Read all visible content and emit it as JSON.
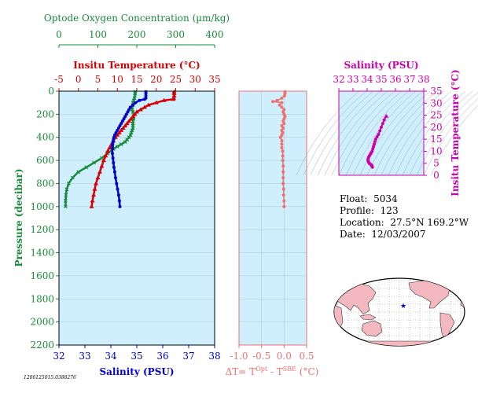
{
  "colors": {
    "oxygen": "#1a8a3a",
    "temperature": "#d80000",
    "salinity": "#0000cc",
    "delta": "#f07070",
    "ts": "#cc00aa",
    "plot_bg": "#cfefff",
    "land": "#f4b8c0"
  },
  "stamp": "1206125015.0388276",
  "info": {
    "float_label": "Float:",
    "float_value": "5034",
    "profile_label": "Profile:",
    "profile_value": "123",
    "location_label": "Location:",
    "location_value": "27.5°N  169.2°W",
    "date_label": "Date:",
    "date_value": "12/03/2007"
  },
  "chart_data": [
    {
      "type": "line",
      "title": "",
      "ylabel": "Pressure (decibar)",
      "ylim": [
        2200,
        0
      ],
      "y_ticks": [
        0,
        200,
        400,
        600,
        800,
        1000,
        1200,
        1400,
        1600,
        1800,
        2000,
        2200
      ],
      "axes": {
        "oxygen": {
          "label": "Optode Oxygen Concentration (µm/kg)",
          "xlim": [
            0,
            400
          ],
          "ticks": [
            0,
            100,
            200,
            300,
            400
          ],
          "position": "top-outer"
        },
        "temperature": {
          "label": "Insitu Temperature (°C)",
          "xlim": [
            -5,
            35
          ],
          "ticks": [
            -5,
            0,
            5,
            10,
            15,
            20,
            25,
            30,
            35
          ],
          "position": "top"
        },
        "salinity": {
          "label": "Salinity (PSU)",
          "xlim": [
            32,
            38
          ],
          "ticks": [
            32,
            33,
            34,
            35,
            36,
            37,
            38
          ],
          "position": "bottom"
        }
      },
      "series": [
        {
          "key": "oxygen",
          "axis": "oxygen",
          "marker": "x",
          "points": [
            [
              196,
              5
            ],
            [
              196,
              20
            ],
            [
              195,
              40
            ],
            [
              194,
              60
            ],
            [
              192,
              80
            ],
            [
              190,
              100
            ],
            [
              190,
              120
            ],
            [
              188,
              140
            ],
            [
              188,
              160
            ],
            [
              190,
              180
            ],
            [
              192,
              200
            ],
            [
              192,
              220
            ],
            [
              192,
              240
            ],
            [
              190,
              260
            ],
            [
              190,
              280
            ],
            [
              190,
              300
            ],
            [
              190,
              320
            ],
            [
              188,
              340
            ],
            [
              186,
              360
            ],
            [
              184,
              380
            ],
            [
              180,
              400
            ],
            [
              175,
              420
            ],
            [
              170,
              440
            ],
            [
              160,
              460
            ],
            [
              150,
              480
            ],
            [
              140,
              500
            ],
            [
              125,
              540
            ],
            [
              110,
              580
            ],
            [
              90,
              620
            ],
            [
              70,
              660
            ],
            [
              50,
              700
            ],
            [
              35,
              750
            ],
            [
              25,
              800
            ],
            [
              20,
              850
            ],
            [
              18,
              900
            ],
            [
              17,
              950
            ],
            [
              17,
              1000
            ]
          ]
        },
        {
          "key": "temperature",
          "axis": "temperature",
          "marker": "triangle",
          "points": [
            [
              24.6,
              5
            ],
            [
              24.6,
              20
            ],
            [
              24.6,
              40
            ],
            [
              24.5,
              60
            ],
            [
              24.4,
              70
            ],
            [
              22,
              80
            ],
            [
              20,
              100
            ],
            [
              18,
              120
            ],
            [
              17,
              140
            ],
            [
              16,
              160
            ],
            [
              15,
              180
            ],
            [
              14.5,
              200
            ],
            [
              14,
              220
            ],
            [
              13.5,
              240
            ],
            [
              13,
              260
            ],
            [
              12.5,
              280
            ],
            [
              12,
              300
            ],
            [
              11.5,
              320
            ],
            [
              11,
              340
            ],
            [
              10.5,
              360
            ],
            [
              10,
              380
            ],
            [
              9.5,
              400
            ],
            [
              9,
              430
            ],
            [
              8.5,
              460
            ],
            [
              8,
              490
            ],
            [
              7.5,
              520
            ],
            [
              7,
              560
            ],
            [
              6.5,
              600
            ],
            [
              6,
              650
            ],
            [
              5.5,
              700
            ],
            [
              5,
              750
            ],
            [
              4.5,
              800
            ],
            [
              4.2,
              850
            ],
            [
              3.9,
              900
            ],
            [
              3.6,
              950
            ],
            [
              3.4,
              1000
            ]
          ]
        },
        {
          "key": "salinity",
          "axis": "salinity",
          "marker": "dot",
          "points": [
            [
              35.35,
              5
            ],
            [
              35.35,
              20
            ],
            [
              35.35,
              40
            ],
            [
              35.35,
              60
            ],
            [
              35.3,
              70
            ],
            [
              35.1,
              80
            ],
            [
              34.95,
              100
            ],
            [
              34.85,
              120
            ],
            [
              34.75,
              140
            ],
            [
              34.7,
              160
            ],
            [
              34.65,
              180
            ],
            [
              34.6,
              200
            ],
            [
              34.55,
              220
            ],
            [
              34.5,
              240
            ],
            [
              34.45,
              260
            ],
            [
              34.4,
              280
            ],
            [
              34.35,
              300
            ],
            [
              34.3,
              320
            ],
            [
              34.25,
              340
            ],
            [
              34.2,
              360
            ],
            [
              34.15,
              380
            ],
            [
              34.12,
              400
            ],
            [
              34.1,
              420
            ],
            [
              34.08,
              440
            ],
            [
              34.07,
              460
            ],
            [
              34.06,
              480
            ],
            [
              34.06,
              500
            ],
            [
              34.06,
              540
            ],
            [
              34.08,
              580
            ],
            [
              34.1,
              620
            ],
            [
              34.12,
              660
            ],
            [
              34.15,
              700
            ],
            [
              34.18,
              750
            ],
            [
              34.22,
              800
            ],
            [
              34.26,
              850
            ],
            [
              34.3,
              900
            ],
            [
              34.33,
              950
            ],
            [
              34.35,
              1000
            ]
          ]
        }
      ]
    },
    {
      "type": "scatter",
      "title": "",
      "xlabel": "ΔT= T^Opt - T^SBE (°C)",
      "xlim": [
        -1.0,
        0.5
      ],
      "x_ticks": [
        -1.0,
        -0.5,
        0.0,
        0.5
      ],
      "ylim": [
        2200,
        0
      ],
      "series": [
        {
          "key": "delta",
          "marker": "dot",
          "points": [
            [
              0.02,
              5
            ],
            [
              0.02,
              20
            ],
            [
              0.01,
              40
            ],
            [
              -0.05,
              60
            ],
            [
              -0.15,
              80
            ],
            [
              -0.25,
              90
            ],
            [
              -0.05,
              100
            ],
            [
              -0.1,
              120
            ],
            [
              -0.05,
              140
            ],
            [
              0.0,
              160
            ],
            [
              -0.02,
              180
            ],
            [
              0.0,
              200
            ],
            [
              0.02,
              220
            ],
            [
              0.0,
              240
            ],
            [
              -0.02,
              260
            ],
            [
              0.0,
              280
            ],
            [
              -0.05,
              300
            ],
            [
              -0.02,
              320
            ],
            [
              -0.05,
              340
            ],
            [
              -0.03,
              360
            ],
            [
              -0.05,
              380
            ],
            [
              -0.08,
              400
            ],
            [
              -0.05,
              430
            ],
            [
              -0.05,
              460
            ],
            [
              -0.05,
              490
            ],
            [
              -0.03,
              520
            ],
            [
              -0.03,
              560
            ],
            [
              -0.03,
              600
            ],
            [
              -0.02,
              650
            ],
            [
              -0.02,
              700
            ],
            [
              -0.02,
              750
            ],
            [
              -0.02,
              800
            ],
            [
              -0.01,
              850
            ],
            [
              -0.01,
              900
            ],
            [
              0.0,
              950
            ],
            [
              0.0,
              1000
            ]
          ]
        }
      ]
    },
    {
      "type": "scatter",
      "title": "",
      "xlabel": "Salinity (PSU)",
      "ylabel": "Insitu Temperature (°C)",
      "xlim": [
        32,
        38
      ],
      "x_ticks": [
        32,
        33,
        34,
        35,
        36,
        37,
        38
      ],
      "ylim": [
        0,
        35
      ],
      "y_ticks": [
        0,
        5,
        10,
        15,
        20,
        25,
        30,
        35
      ],
      "series": [
        {
          "key": "ts",
          "marker": "dot",
          "points": [
            [
              35.35,
              24.6
            ],
            [
              35.2,
              23
            ],
            [
              35.1,
              21.5
            ],
            [
              35.0,
              20
            ],
            [
              34.9,
              18.5
            ],
            [
              34.8,
              17
            ],
            [
              34.7,
              16
            ],
            [
              34.6,
              15
            ],
            [
              34.55,
              14
            ],
            [
              34.5,
              13
            ],
            [
              34.45,
              12
            ],
            [
              34.4,
              11
            ],
            [
              34.35,
              10
            ],
            [
              34.3,
              9.5
            ],
            [
              34.25,
              9
            ],
            [
              34.2,
              8.5
            ],
            [
              34.15,
              8
            ],
            [
              34.1,
              7.5
            ],
            [
              34.08,
              7
            ],
            [
              34.06,
              6.5
            ],
            [
              34.07,
              6
            ],
            [
              34.1,
              5.5
            ],
            [
              34.15,
              5
            ],
            [
              34.2,
              4.8
            ],
            [
              34.25,
              4.5
            ],
            [
              34.3,
              4.2
            ],
            [
              34.33,
              4.0
            ],
            [
              34.35,
              3.8
            ],
            [
              34.36,
              3.6
            ],
            [
              34.37,
              3.4
            ]
          ]
        }
      ]
    }
  ]
}
